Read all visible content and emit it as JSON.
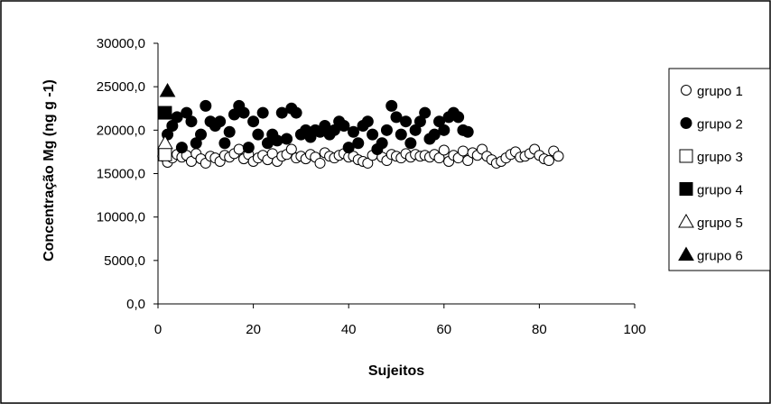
{
  "chart_data": {
    "type": "scatter",
    "title": "",
    "xlabel": "Sujeitos",
    "ylabel": "Concentração  Mg  (ng g -1)",
    "xlim": [
      0,
      100
    ],
    "ylim": [
      0,
      30000
    ],
    "x_ticks": [
      0,
      20,
      40,
      60,
      80,
      100
    ],
    "y_ticks": [
      0,
      5000,
      10000,
      15000,
      20000,
      25000,
      30000
    ],
    "x_tick_labels": [
      "0",
      "20",
      "40",
      "60",
      "80",
      "100"
    ],
    "y_tick_labels": [
      "0,0",
      "5000,0",
      "10000,0",
      "15000,0",
      "20000,0",
      "25000,0",
      "30000,0"
    ],
    "grid": false,
    "legend_position": "right",
    "series": [
      {
        "name": "grupo 1",
        "marker": "circle-open",
        "x": [
          1,
          2,
          3,
          4,
          5,
          6,
          7,
          8,
          9,
          10,
          11,
          12,
          13,
          14,
          15,
          16,
          17,
          18,
          19,
          20,
          21,
          22,
          23,
          24,
          25,
          26,
          27,
          28,
          29,
          30,
          31,
          32,
          33,
          34,
          35,
          36,
          37,
          38,
          39,
          40,
          41,
          42,
          43,
          44,
          45,
          46,
          47,
          48,
          49,
          50,
          51,
          52,
          53,
          54,
          55,
          56,
          57,
          58,
          59,
          60,
          61,
          62,
          63,
          64,
          65,
          66,
          67,
          68,
          69,
          70,
          71,
          72,
          73,
          74,
          75,
          76,
          77,
          78,
          79,
          80,
          81,
          82,
          83,
          84
        ],
        "y": [
          17000,
          16300,
          16800,
          17200,
          16900,
          17100,
          16400,
          17300,
          16700,
          16200,
          17000,
          16800,
          16400,
          17100,
          16900,
          17300,
          17800,
          16700,
          17200,
          16400,
          16800,
          17100,
          16600,
          17300,
          16400,
          17000,
          17200,
          17800,
          16800,
          17000,
          16700,
          17200,
          16900,
          16200,
          17400,
          17000,
          16800,
          17100,
          17300,
          16900,
          17000,
          16600,
          16400,
          16200,
          17100,
          17800,
          16900,
          16500,
          17200,
          17000,
          16800,
          17300,
          16900,
          17200,
          17000,
          17100,
          16900,
          17200,
          16800,
          17700,
          16400,
          17100,
          16800,
          17600,
          16500,
          17400,
          17100,
          17800,
          17000,
          16600,
          16200,
          16400,
          16800,
          17200,
          17500,
          16900,
          17000,
          17300,
          17800,
          17100,
          16700,
          16500,
          17600,
          17000
        ]
      },
      {
        "name": "grupo 2",
        "marker": "circle-filled",
        "x": [
          2,
          3,
          4,
          5,
          6,
          7,
          8,
          9,
          10,
          11,
          12,
          13,
          14,
          15,
          16,
          17,
          18,
          19,
          20,
          21,
          22,
          23,
          24,
          25,
          26,
          27,
          28,
          29,
          30,
          31,
          32,
          33,
          34,
          35,
          36,
          37,
          38,
          39,
          40,
          41,
          42,
          43,
          44,
          45,
          46,
          47,
          48,
          49,
          50,
          51,
          52,
          53,
          54,
          55,
          56,
          57,
          58,
          59,
          60,
          61,
          62,
          63,
          64,
          65
        ],
        "y": [
          19500,
          20500,
          21500,
          18000,
          22000,
          21000,
          18500,
          19500,
          22800,
          21000,
          20500,
          21000,
          18500,
          19800,
          21800,
          22800,
          22000,
          18000,
          21000,
          19500,
          22000,
          18500,
          19500,
          18800,
          22000,
          19000,
          22500,
          22000,
          19500,
          20000,
          19200,
          20000,
          19800,
          20500,
          19500,
          20000,
          21000,
          20500,
          18000,
          19800,
          18500,
          20500,
          21000,
          19500,
          17800,
          18500,
          20000,
          22800,
          21500,
          19500,
          21000,
          18500,
          20000,
          21000,
          22000,
          19000,
          19500,
          21000,
          20000,
          21500,
          22000,
          21500,
          20000,
          19800
        ]
      },
      {
        "name": "grupo 3",
        "marker": "square-open",
        "x": [
          1.5
        ],
        "y": [
          17200
        ]
      },
      {
        "name": "grupo 4",
        "marker": "square-filled",
        "x": [
          1.5
        ],
        "y": [
          22000
        ]
      },
      {
        "name": "grupo 5",
        "marker": "triangle-open",
        "x": [
          1.5
        ],
        "y": [
          18500
        ]
      },
      {
        "name": "grupo 6",
        "marker": "triangle-filled",
        "x": [
          2
        ],
        "y": [
          24500
        ]
      }
    ]
  }
}
